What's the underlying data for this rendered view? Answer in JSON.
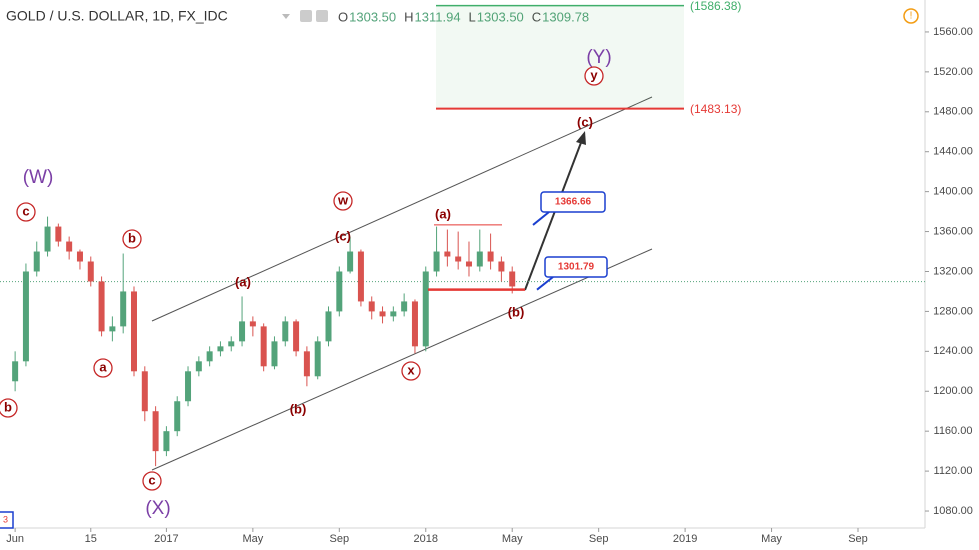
{
  "chart_data": {
    "type": "candlestick",
    "symbol": "GOLD / U.S. DOLLAR, 1D, FX_IDC",
    "ohlc": [
      {
        "name": "O",
        "value": 1303.5,
        "label": "1303.50"
      },
      {
        "name": "H",
        "value": 1311.94,
        "label": "1311.94"
      },
      {
        "name": "L",
        "value": 1303.5,
        "label": "1303.50"
      },
      {
        "name": "C",
        "value": 1309.78,
        "label": "1309.78"
      }
    ],
    "up_color": "#53a37a",
    "down_color": "#d9534f",
    "x": [
      0,
      0.5,
      1,
      1.5,
      2,
      2.5,
      3,
      3.5,
      4,
      4.5,
      5,
      5.5,
      6,
      6.5,
      7,
      7.5,
      8,
      8.5,
      9,
      9.5,
      10,
      10.5,
      11,
      11.5,
      12,
      12.5,
      13,
      13.5,
      14,
      14.5,
      15,
      15.5,
      16,
      16.5,
      17,
      17.5,
      18,
      18.5,
      19,
      19.5,
      20,
      20.5,
      21,
      21.5,
      22,
      22.5,
      23
    ],
    "open": [
      1210,
      1230,
      1320,
      1340,
      1365,
      1350,
      1340,
      1330,
      1310,
      1260,
      1265,
      1300,
      1220,
      1180,
      1140,
      1160,
      1190,
      1220,
      1230,
      1240,
      1245,
      1250,
      1270,
      1265,
      1225,
      1250,
      1270,
      1240,
      1215,
      1250,
      1280,
      1320,
      1340,
      1290,
      1280,
      1275,
      1280,
      1290,
      1245,
      1320,
      1340,
      1335,
      1330,
      1325,
      1340,
      1330,
      1320
    ],
    "high": [
      1240,
      1328,
      1350,
      1375,
      1368,
      1355,
      1342,
      1335,
      1315,
      1275,
      1338,
      1305,
      1225,
      1185,
      1165,
      1195,
      1225,
      1235,
      1245,
      1250,
      1255,
      1295,
      1275,
      1268,
      1255,
      1275,
      1272,
      1245,
      1255,
      1285,
      1325,
      1355,
      1342,
      1295,
      1285,
      1285,
      1298,
      1292,
      1325,
      1365,
      1362,
      1360,
      1350,
      1362,
      1358,
      1335,
      1325
    ],
    "low": [
      1200,
      1225,
      1315,
      1335,
      1345,
      1332,
      1322,
      1305,
      1255,
      1250,
      1258,
      1215,
      1170,
      1125,
      1135,
      1155,
      1185,
      1215,
      1225,
      1235,
      1240,
      1245,
      1255,
      1220,
      1222,
      1245,
      1235,
      1205,
      1212,
      1245,
      1275,
      1318,
      1285,
      1272,
      1268,
      1270,
      1275,
      1238,
      1240,
      1315,
      1325,
      1322,
      1315,
      1320,
      1322,
      1310,
      1298
    ],
    "close": [
      1230,
      1320,
      1340,
      1365,
      1350,
      1340,
      1330,
      1310,
      1260,
      1265,
      1300,
      1220,
      1180,
      1140,
      1160,
      1190,
      1220,
      1230,
      1240,
      1245,
      1250,
      1270,
      1265,
      1225,
      1250,
      1270,
      1240,
      1215,
      1250,
      1280,
      1320,
      1340,
      1290,
      1280,
      1275,
      1280,
      1290,
      1245,
      1320,
      1340,
      1335,
      1330,
      1325,
      1340,
      1330,
      1320,
      1305
    ],
    "xlim": [
      -0.7,
      42.1
    ],
    "xticks": [
      {
        "value": 0,
        "label": "Jun"
      },
      {
        "value": 3.5,
        "label": "15"
      },
      {
        "value": 7,
        "label": "2017"
      },
      {
        "value": 11,
        "label": "May"
      },
      {
        "value": 15,
        "label": "Sep"
      },
      {
        "value": 19,
        "label": "2018"
      },
      {
        "value": 23,
        "label": "May"
      },
      {
        "value": 27,
        "label": "Sep"
      },
      {
        "value": 31,
        "label": "2019"
      },
      {
        "value": 35,
        "label": "May"
      },
      {
        "value": 39,
        "label": "Sep"
      }
    ],
    "ylim": [
      1063,
      1592
    ],
    "yticks": [
      {
        "value": 1080,
        "label": "1080.00"
      },
      {
        "value": 1120,
        "label": "1120.00"
      },
      {
        "value": 1160,
        "label": "1160.00"
      },
      {
        "value": 1200,
        "label": "1200.00"
      },
      {
        "value": 1240,
        "label": "1240.00"
      },
      {
        "value": 1280,
        "label": "1280.00"
      },
      {
        "value": 1320,
        "label": "1320.00"
      },
      {
        "value": 1360,
        "label": "1360.00"
      },
      {
        "value": 1400,
        "label": "1400.00"
      },
      {
        "value": 1440,
        "label": "1440.00"
      },
      {
        "value": 1480,
        "label": "1480.00"
      },
      {
        "value": 1520,
        "label": "1520.00"
      },
      {
        "value": 1560,
        "label": "1560.00"
      }
    ],
    "levels": [
      {
        "value": 1586.38,
        "label": "(1586.38)",
        "color": "#3fae6a"
      },
      {
        "value": 1483.13,
        "label": "(1483.13)",
        "color": "#e53935"
      }
    ],
    "callouts": [
      {
        "value": 1366.66,
        "label": "1366.66"
      },
      {
        "value": 1301.79,
        "label": "1301.79"
      }
    ],
    "wave_labels": [
      "(W)",
      "c",
      "b",
      "a",
      "b",
      "c",
      "(X)",
      "(a)",
      "(b)",
      "w",
      "(c)",
      "x",
      "(a)",
      "(b)",
      "(c)",
      "(Y)",
      "y"
    ],
    "corner_label": "3"
  }
}
